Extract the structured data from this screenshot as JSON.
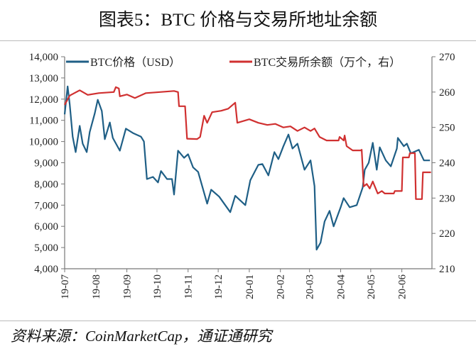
{
  "title": "图表5：BTC 价格与交易所地址余额",
  "source": "资料来源：CoinMarketCap，通证通研究",
  "chart_data": {
    "type": "line",
    "title": "图表5：BTC 价格与交易所地址余额",
    "xlabel": "",
    "x_ticks": [
      "19-07",
      "19-08",
      "19-09",
      "19-10",
      "19-11",
      "19-12",
      "20-01",
      "20-02",
      "20-03",
      "20-04",
      "20-05",
      "20-06"
    ],
    "x_tick_dates": [
      "2019-07-01",
      "2019-08-01",
      "2019-09-01",
      "2019-10-01",
      "2019-11-01",
      "2019-12-01",
      "2020-01-01",
      "2020-02-01",
      "2020-03-01",
      "2020-04-01",
      "2020-05-01",
      "2020-06-01"
    ],
    "xlim": [
      "2019-07-01",
      "2020-07-01"
    ],
    "y_left": {
      "label": "",
      "lim": [
        4000,
        14000
      ],
      "ticks": [
        "4,000",
        "5,000",
        "6,000",
        "7,000",
        "8,000",
        "9,000",
        "10,000",
        "11,000",
        "12,000",
        "13,000",
        "14,000"
      ]
    },
    "y_right": {
      "label": "",
      "lim": [
        210,
        270
      ],
      "ticks": [
        "210",
        "220",
        "230",
        "240",
        "250",
        "260",
        "270"
      ]
    },
    "grid": false,
    "legend_placement": "top",
    "series": [
      {
        "name": "BTC价格（USD）",
        "axis": "left",
        "color": "#1F5F86",
        "x": [
          "2019-07-01",
          "2019-07-04",
          "2019-07-06",
          "2019-07-09",
          "2019-07-12",
          "2019-07-16",
          "2019-07-19",
          "2019-07-23",
          "2019-07-26",
          "2019-07-31",
          "2019-08-03",
          "2019-08-07",
          "2019-08-10",
          "2019-08-15",
          "2019-08-18",
          "2019-08-25",
          "2019-08-31",
          "2019-09-07",
          "2019-09-15",
          "2019-09-18",
          "2019-09-21",
          "2019-09-27",
          "2019-10-02",
          "2019-10-05",
          "2019-10-11",
          "2019-10-16",
          "2019-10-18",
          "2019-10-22",
          "2019-10-28",
          "2019-11-01",
          "2019-11-06",
          "2019-11-11",
          "2019-11-20",
          "2019-11-24",
          "2019-12-02",
          "2019-12-13",
          "2019-12-18",
          "2019-12-28",
          "2020-01-02",
          "2020-01-10",
          "2020-01-14",
          "2020-01-20",
          "2020-01-26",
          "2020-01-30",
          "2020-02-04",
          "2020-02-09",
          "2020-02-13",
          "2020-02-18",
          "2020-02-25",
          "2020-03-02",
          "2020-03-06",
          "2020-03-08",
          "2020-03-12",
          "2020-03-16",
          "2020-03-21",
          "2020-03-25",
          "2020-04-01",
          "2020-04-04",
          "2020-04-10",
          "2020-04-17",
          "2020-04-23",
          "2020-04-25",
          "2020-04-29",
          "2020-05-03",
          "2020-05-07",
          "2020-05-10",
          "2020-05-16",
          "2020-05-21",
          "2020-05-27",
          "2020-05-28",
          "2020-06-03",
          "2020-06-06",
          "2020-06-10",
          "2020-06-18",
          "2020-06-23",
          "2020-06-29"
        ],
        "values": [
          11280,
          12600,
          11770,
          10230,
          9500,
          10740,
          9900,
          9500,
          10450,
          11330,
          11970,
          11440,
          10110,
          10900,
          10170,
          9570,
          10610,
          10400,
          10230,
          10000,
          8230,
          8330,
          8070,
          8610,
          8230,
          8230,
          7500,
          9570,
          9230,
          9400,
          8780,
          8570,
          7070,
          7730,
          7400,
          6670,
          7440,
          7000,
          8170,
          8900,
          8940,
          8400,
          9500,
          9170,
          9780,
          10330,
          9670,
          9900,
          8670,
          9110,
          7900,
          4900,
          5230,
          6230,
          6730,
          6000,
          6900,
          7330,
          6900,
          7000,
          7830,
          8670,
          9000,
          9940,
          8670,
          9730,
          9110,
          8830,
          9670,
          10170,
          9780,
          9900,
          9440,
          9610,
          9110,
          9110
        ]
      },
      {
        "name": "BTC交易所余额（万个，右）",
        "axis": "right",
        "color": "#D03030",
        "x": [
          "2019-07-01",
          "2019-07-06",
          "2019-07-16",
          "2019-07-24",
          "2019-08-04",
          "2019-08-19",
          "2019-08-21",
          "2019-08-24",
          "2019-08-25",
          "2019-09-01",
          "2019-09-09",
          "2019-09-20",
          "2019-10-18",
          "2019-10-22",
          "2019-10-23",
          "2019-10-29",
          "2019-10-31",
          "2019-11-10",
          "2019-11-13",
          "2019-11-17",
          "2019-11-20",
          "2019-11-25",
          "2019-12-04",
          "2019-12-11",
          "2019-12-18",
          "2019-12-20",
          "2020-01-01",
          "2020-01-10",
          "2020-01-19",
          "2020-01-27",
          "2020-02-04",
          "2020-02-11",
          "2020-02-18",
          "2020-02-25",
          "2020-03-02",
          "2020-03-06",
          "2020-03-11",
          "2020-03-18",
          "2020-03-30",
          "2020-03-31",
          "2020-04-04",
          "2020-04-05",
          "2020-04-07",
          "2020-04-13",
          "2020-04-21",
          "2020-04-22",
          "2020-04-24",
          "2020-04-27",
          "2020-04-30",
          "2020-05-03",
          "2020-05-08",
          "2020-05-12",
          "2020-05-15",
          "2020-05-24",
          "2020-05-25",
          "2020-06-01",
          "2020-06-02",
          "2020-06-08",
          "2020-06-09",
          "2020-06-14",
          "2020-06-15",
          "2020-06-21",
          "2020-06-22",
          "2020-06-30"
        ],
        "values": [
          256.4,
          259,
          260.5,
          259.2,
          259.7,
          260,
          261.4,
          261,
          258.8,
          259.3,
          258.3,
          259.7,
          260.3,
          260,
          256,
          256,
          246.8,
          246.7,
          247.3,
          253.3,
          251.3,
          254.3,
          254.7,
          255.3,
          257,
          251.3,
          252.3,
          251.3,
          250.7,
          251,
          250,
          250.3,
          249,
          250,
          249,
          249.7,
          247.3,
          246.3,
          246.3,
          247.3,
          246.3,
          247.7,
          244.7,
          243.5,
          243.5,
          243.7,
          233.3,
          234,
          232.7,
          234.7,
          231.3,
          232,
          231.3,
          231.3,
          232,
          232,
          241.5,
          241.5,
          242.7,
          242.7,
          229.7,
          229.7,
          237.3,
          237.3
        ]
      }
    ]
  }
}
